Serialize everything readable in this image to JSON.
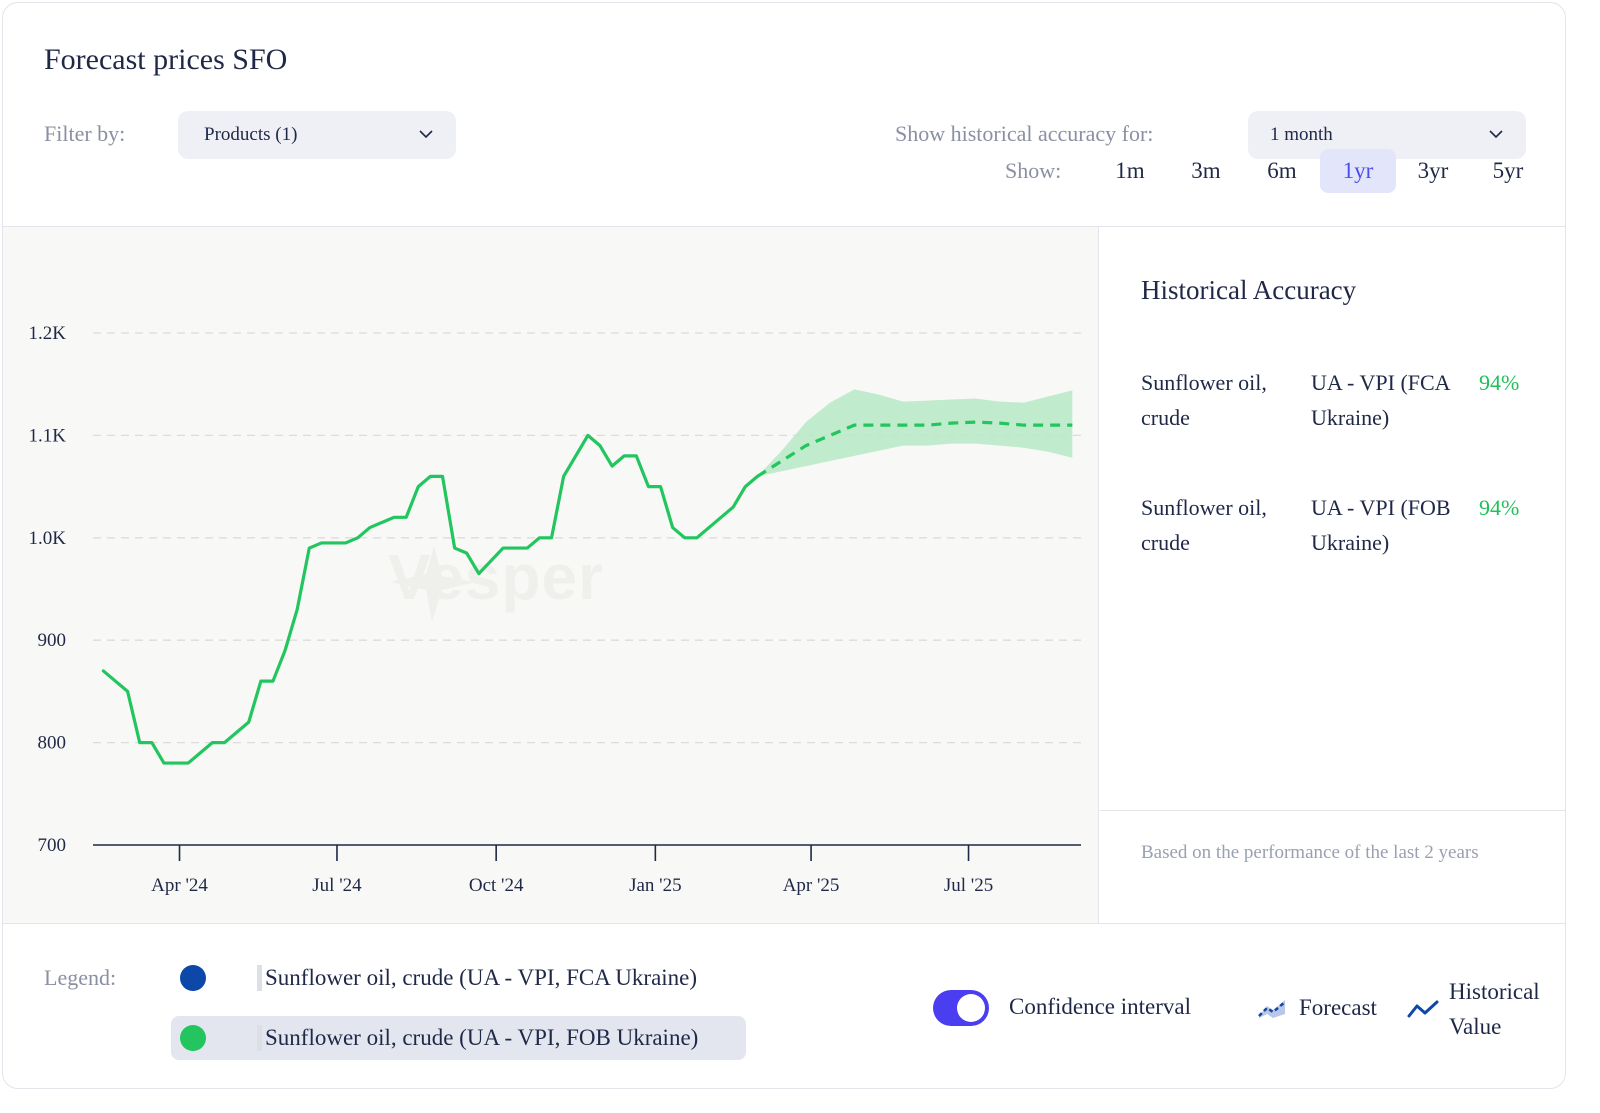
{
  "header": {
    "title": "Forecast prices SFO",
    "filter_label": "Filter by:",
    "products_select": "Products (1)",
    "accuracy_label": "Show historical accuracy for:",
    "accuracy_select": "1 month",
    "show_label": "Show:",
    "ranges": [
      "1m",
      "3m",
      "6m",
      "1yr",
      "3yr",
      "5yr"
    ],
    "active_range": "1yr"
  },
  "side": {
    "title": "Historical Accuracy",
    "rows": [
      {
        "product": "Sunflower oil, crude",
        "source": "UA - VPI (FCA Ukraine)",
        "value": "94%"
      },
      {
        "product": "Sunflower oil, crude",
        "source": "UA - VPI (FOB Ukraine)",
        "value": "94%"
      }
    ],
    "note": "Based on the performance of the last 2 years"
  },
  "footer": {
    "legend_label": "Legend:",
    "legend_items": [
      {
        "label": "Sunflower oil, crude (UA - VPI, FCA Ukraine)",
        "color": "#0d47a8"
      },
      {
        "label": "Sunflower oil, crude (UA - VPI, FOB Ukraine)",
        "color": "#22c55e"
      }
    ],
    "toggle_label": "Confidence interval",
    "forecast_label": "Forecast",
    "historical_label_1": "Historical",
    "historical_label_2": "Value"
  },
  "watermark": "Vesper",
  "colors": {
    "series": "#22c55e",
    "band": "#b7e9c6",
    "accent": "#4b3ef0",
    "grid": "#dcdcdc"
  },
  "chart_data": {
    "type": "line",
    "y_ticks": [
      "700",
      "800",
      "900",
      "1.0K",
      "1.1K",
      "1.2K"
    ],
    "ylim": [
      700,
      1200
    ],
    "x_ticks": [
      {
        "label": "Apr '24",
        "date": "2024-04-01"
      },
      {
        "label": "Jul '24",
        "date": "2024-07-01"
      },
      {
        "label": "Oct '24",
        "date": "2024-10-01"
      },
      {
        "label": "Jan '25",
        "date": "2025-01-01"
      },
      {
        "label": "Apr '25",
        "date": "2025-04-01"
      },
      {
        "label": "Jul '25",
        "date": "2025-07-01"
      }
    ],
    "xlim": [
      "2024-02-11",
      "2025-09-04"
    ],
    "grid": "horizontal dashed",
    "series": [
      {
        "name": "Sunflower oil, crude (UA - VPI, FOB Ukraine)",
        "kind": "historical",
        "x": [
          "2024-02-17",
          "2024-03-02",
          "2024-03-09",
          "2024-03-16",
          "2024-03-23",
          "2024-04-06",
          "2024-04-20",
          "2024-04-27",
          "2024-05-11",
          "2024-05-18",
          "2024-05-25",
          "2024-06-01",
          "2024-06-08",
          "2024-06-15",
          "2024-06-22",
          "2024-06-29",
          "2024-07-06",
          "2024-07-13",
          "2024-07-20",
          "2024-08-03",
          "2024-08-10",
          "2024-08-17",
          "2024-08-24",
          "2024-08-31",
          "2024-09-07",
          "2024-09-14",
          "2024-09-21",
          "2024-10-05",
          "2024-10-12",
          "2024-10-19",
          "2024-10-26",
          "2024-11-02",
          "2024-11-09",
          "2024-11-16",
          "2024-11-23",
          "2024-11-30",
          "2024-12-07",
          "2024-12-14",
          "2024-12-21",
          "2024-12-28",
          "2025-01-04",
          "2025-01-11",
          "2025-01-18",
          "2025-01-25",
          "2025-02-01",
          "2025-02-08",
          "2025-02-15",
          "2025-02-22",
          "2025-03-01"
        ],
        "y": [
          870,
          850,
          800,
          800,
          780,
          780,
          800,
          800,
          820,
          860,
          860,
          890,
          930,
          990,
          995,
          995,
          995,
          1000,
          1010,
          1020,
          1020,
          1050,
          1060,
          1060,
          990,
          985,
          965,
          990,
          990,
          990,
          1000,
          1000,
          1060,
          1080,
          1100,
          1090,
          1070,
          1080,
          1080,
          1050,
          1050,
          1010,
          1000,
          1000,
          1010,
          1020,
          1030,
          1050,
          1060
        ]
      },
      {
        "name": "Sunflower oil, crude (UA - VPI, FOB Ukraine)",
        "kind": "forecast",
        "x": [
          "2025-03-01",
          "2025-03-15",
          "2025-03-29",
          "2025-04-12",
          "2025-04-26",
          "2025-05-10",
          "2025-05-24",
          "2025-06-07",
          "2025-06-21",
          "2025-07-05",
          "2025-07-19",
          "2025-08-02",
          "2025-08-16",
          "2025-08-30"
        ],
        "y": [
          1060,
          1075,
          1090,
          1100,
          1110,
          1110,
          1110,
          1110,
          1112,
          1113,
          1112,
          1110,
          1110,
          1110
        ],
        "lower": [
          1060,
          1065,
          1070,
          1075,
          1080,
          1085,
          1090,
          1090,
          1092,
          1092,
          1090,
          1088,
          1084,
          1078
        ],
        "upper": [
          1060,
          1085,
          1113,
          1132,
          1145,
          1140,
          1133,
          1134,
          1135,
          1136,
          1133,
          1132,
          1138,
          1144
        ]
      }
    ]
  }
}
